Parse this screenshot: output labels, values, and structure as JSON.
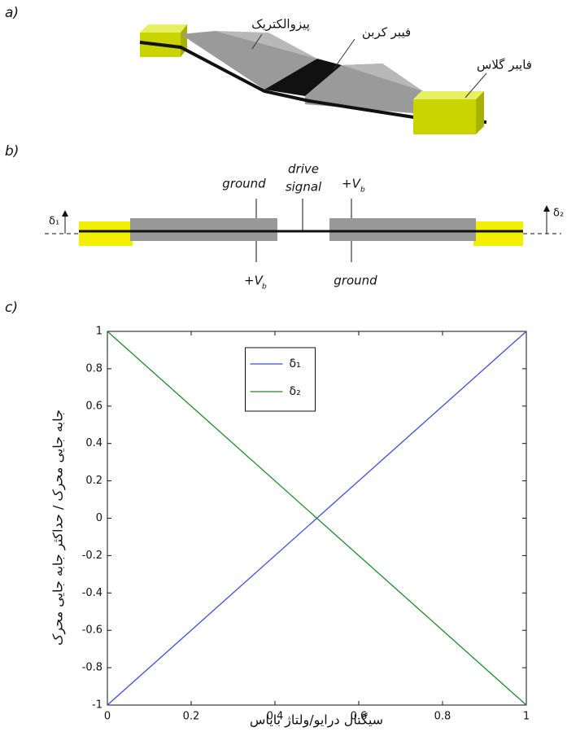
{
  "panel_labels": [
    "a)",
    "b)",
    "c)"
  ],
  "diagram_a": {
    "labels": [
      "پیزوالکتریک",
      "فیبر کربن",
      "فایبر گلاس"
    ]
  },
  "diagram_b": {
    "labels": [
      "ground",
      "drive",
      "signal",
      "+V",
      "b",
      "ground",
      "+V",
      "b",
      "δ₁",
      "δ₂"
    ]
  },
  "chart_data": {
    "type": "line",
    "x": [
      0,
      1
    ],
    "series": [
      {
        "name": "δ₁",
        "color": "#3a4fd8",
        "values": [
          -1,
          1
        ]
      },
      {
        "name": "δ₂",
        "color": "#1f8a2a",
        "values": [
          1,
          -1
        ]
      }
    ],
    "xlabel": "سیگنال درایو/ولتاژ بایاس",
    "ylabel": "جابه جایی محرک / حداکثر جابه جایی محرک",
    "xlim": [
      0,
      1
    ],
    "ylim": [
      -1,
      1
    ],
    "xticks": [
      0,
      0.2,
      0.4,
      0.6,
      0.8,
      1
    ],
    "yticks": [
      -1,
      -0.8,
      -0.6,
      -0.4,
      -0.2,
      0,
      0.2,
      0.4,
      0.6,
      0.8,
      1
    ],
    "grid": false,
    "legend": "top"
  }
}
